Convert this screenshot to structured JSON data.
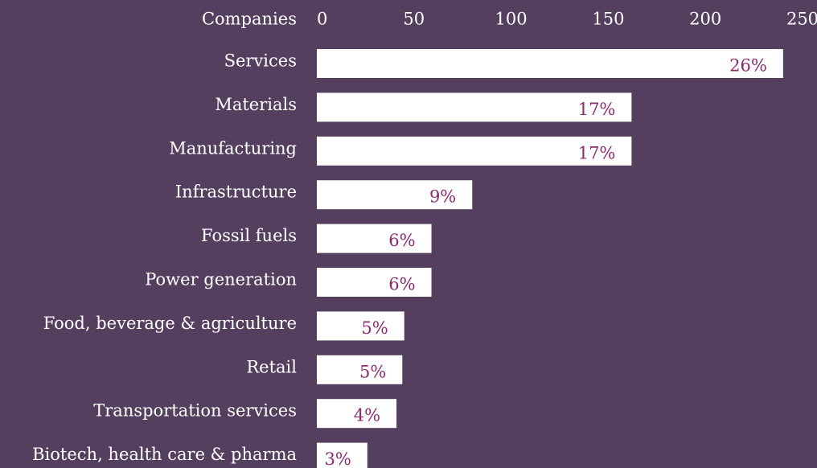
{
  "chart_data": {
    "type": "bar",
    "orientation": "horizontal",
    "x_label": "Companies",
    "categories": [
      "Services",
      "Materials",
      "Manufacturing",
      "Infrastructure",
      "Fossil fuels",
      "Power generation",
      "Food, beverage & agriculture",
      "Retail",
      "Transportation services",
      "Biotech, health care & pharma"
    ],
    "values": [
      240,
      162,
      162,
      80,
      59,
      59,
      45,
      44,
      41,
      26
    ],
    "value_labels": [
      "26%",
      "17%",
      "17%",
      "9%",
      "6%",
      "6%",
      "5%",
      "5%",
      "4%",
      "3%"
    ],
    "color": "#ffffff",
    "label_color": "#8b2a6e",
    "xlim": [
      0,
      250
    ],
    "xticks": [
      0,
      50,
      100,
      150,
      200,
      250
    ]
  }
}
